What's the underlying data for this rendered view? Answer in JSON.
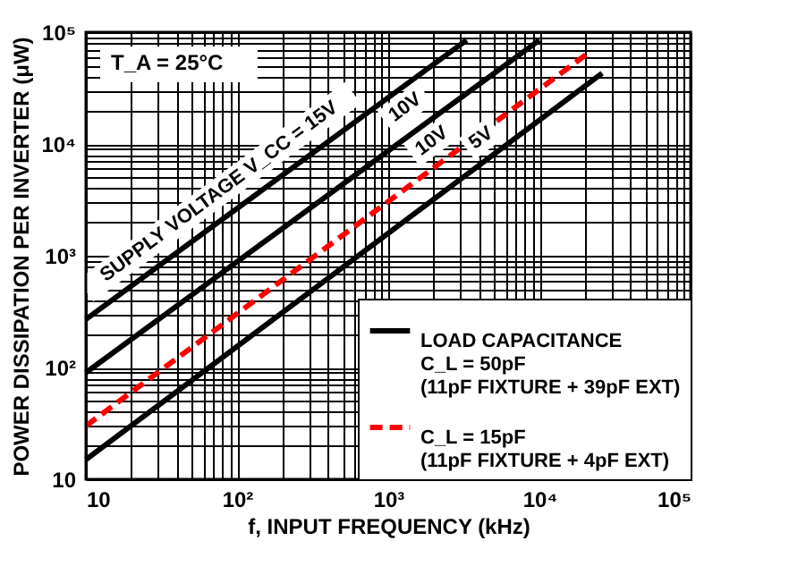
{
  "chart_data": {
    "type": "line",
    "xlabel": "f, INPUT FREQUENCY (kHz)",
    "ylabel": "POWER DISSIPATION PER INVERTER (μW)",
    "log": "xy",
    "xlim": [
      10,
      100000
    ],
    "ylim": [
      10,
      100000
    ],
    "xticks": [
      10,
      {
        "value": 20,
        "label": null
      },
      {
        "value": 30,
        "label": null
      },
      {
        "value": 40,
        "label": null
      },
      {
        "value": 50,
        "label": null
      },
      {
        "value": 60,
        "label": null
      },
      {
        "value": 70,
        "label": null
      },
      {
        "value": 80,
        "label": null
      },
      {
        "value": 90,
        "label": null
      },
      {
        "value": 100,
        "label": "10²"
      },
      {
        "value": 200,
        "label": null
      },
      {
        "value": 300,
        "label": null
      },
      {
        "value": 400,
        "label": null
      },
      {
        "value": 500,
        "label": null
      },
      {
        "value": 600,
        "label": null
      },
      {
        "value": 700,
        "label": null
      },
      {
        "value": 800,
        "label": null
      },
      {
        "value": 900,
        "label": null
      },
      {
        "value": 1000,
        "label": "10³"
      },
      {
        "value": 2000,
        "label": null
      },
      {
        "value": 3000,
        "label": null
      },
      {
        "value": 4000,
        "label": null
      },
      {
        "value": 5000,
        "label": null
      },
      {
        "value": 6000,
        "label": null
      },
      {
        "value": 7000,
        "label": null
      },
      {
        "value": 8000,
        "label": null
      },
      {
        "value": 9000,
        "label": null
      },
      {
        "value": 10000,
        "label": "10⁴"
      },
      {
        "value": 20000,
        "label": null
      },
      {
        "value": 30000,
        "label": null
      },
      {
        "value": 40000,
        "label": null
      },
      {
        "value": 50000,
        "label": null
      },
      {
        "value": 60000,
        "label": null
      },
      {
        "value": 70000,
        "label": null
      },
      {
        "value": 80000,
        "label": null
      },
      {
        "value": 90000,
        "label": null
      },
      {
        "value": 100000,
        "label": "10⁵"
      }
    ],
    "yticks": [
      10,
      {
        "value": 20,
        "label": null
      },
      {
        "value": 30,
        "label": null
      },
      {
        "value": 40,
        "label": null
      },
      {
        "value": 50,
        "label": null
      },
      {
        "value": 60,
        "label": null
      },
      {
        "value": 70,
        "label": null
      },
      {
        "value": 80,
        "label": null
      },
      {
        "value": 90,
        "label": null
      },
      {
        "value": 100,
        "label": "10²"
      },
      {
        "value": 200,
        "label": null
      },
      {
        "value": 300,
        "label": null
      },
      {
        "value": 400,
        "label": null
      },
      {
        "value": 500,
        "label": null
      },
      {
        "value": 600,
        "label": null
      },
      {
        "value": 700,
        "label": null
      },
      {
        "value": 800,
        "label": null
      },
      {
        "value": 900,
        "label": null
      },
      {
        "value": 1000,
        "label": "10³"
      },
      {
        "value": 2000,
        "label": null
      },
      {
        "value": 3000,
        "label": null
      },
      {
        "value": 4000,
        "label": null
      },
      {
        "value": 5000,
        "label": null
      },
      {
        "value": 6000,
        "label": null
      },
      {
        "value": 7000,
        "label": null
      },
      {
        "value": 8000,
        "label": null
      },
      {
        "value": 9000,
        "label": null
      },
      {
        "value": 10000,
        "label": "10⁴"
      },
      {
        "value": 20000,
        "label": null
      },
      {
        "value": 30000,
        "label": null
      },
      {
        "value": 40000,
        "label": null
      },
      {
        "value": 50000,
        "label": null
      },
      {
        "value": 60000,
        "label": null
      },
      {
        "value": 70000,
        "label": null
      },
      {
        "value": 80000,
        "label": null
      },
      {
        "value": 90000,
        "label": null
      },
      {
        "value": 100000,
        "label": "10⁵"
      }
    ],
    "grid": true,
    "legend": "bottom right",
    "series": [
      {
        "name": "LOAD CAPACITANCE\nC_L = 50pF\n(11pF FIXTURE + 39pF EXT)",
        "color": "#000000",
        "line_style": "solid",
        "x": [
          10,
          3300
        ],
        "values": [
          270,
          85000
        ]
      },
      {
        "color": "#000000",
        "line_style": "solid",
        "x": [
          10,
          10000
        ],
        "values": [
          90,
          85000
        ]
      },
      {
        "name": "C_L = 15pF\n(11pF FIXTURE + 4pF EXT)",
        "color": "#ff0000",
        "line_style": "dashed",
        "x": [
          10,
          21000
        ],
        "values": [
          30,
          65000
        ]
      },
      {
        "color": "#000000",
        "line_style": "solid",
        "x": [
          10,
          26000
        ],
        "values": [
          15,
          43000
        ]
      }
    ],
    "annotations": [
      "T_A = 25°C",
      {
        "text": "SUPPLY VOLTAGE V_CC = 15V",
        "x": 94,
        "y": 2540
      },
      {
        "text": "10V",
        "x": 1600,
        "y": 14400
      },
      {
        "text": "10V",
        "x": 2400,
        "y": 7200
      },
      {
        "text": "5V",
        "x": 5100,
        "y": 7650
      }
    ]
  }
}
